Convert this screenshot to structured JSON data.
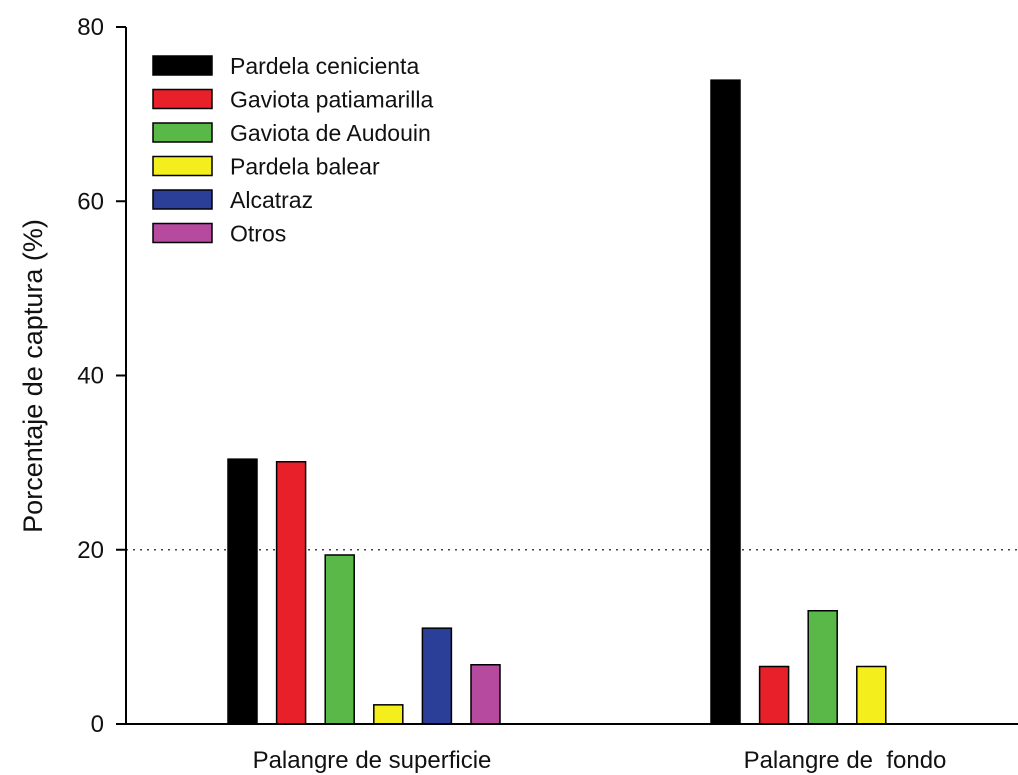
{
  "chart_data": {
    "type": "bar",
    "title": "",
    "xlabel": "",
    "ylabel": "Porcentaje de captura (%)",
    "ylim": [
      0,
      80
    ],
    "yticks": [
      "0",
      "20",
      "40",
      "60",
      "80"
    ],
    "reference_line": {
      "y": 20,
      "style": "dotted"
    },
    "legend_position": "top-left",
    "categories": [
      "Palangre de superficie",
      "Palangre de  fondo"
    ],
    "series": [
      {
        "name": "Pardela cenicienta",
        "color": "#000000",
        "values": [
          30.4,
          73.9
        ]
      },
      {
        "name": "Gaviota patiamarilla",
        "color": "#e8202a",
        "values": [
          30.1,
          6.6
        ]
      },
      {
        "name": "Gaviota de Audouin",
        "color": "#5ab849",
        "values": [
          19.4,
          13.0
        ]
      },
      {
        "name": "Pardela balear",
        "color": "#f3ee1c",
        "values": [
          2.2,
          6.6
        ]
      },
      {
        "name": "Alcatraz",
        "color": "#2b3f98",
        "values": [
          11.0,
          null
        ]
      },
      {
        "name": "Otros",
        "color": "#b64a9f",
        "values": [
          6.8,
          null
        ]
      }
    ]
  }
}
